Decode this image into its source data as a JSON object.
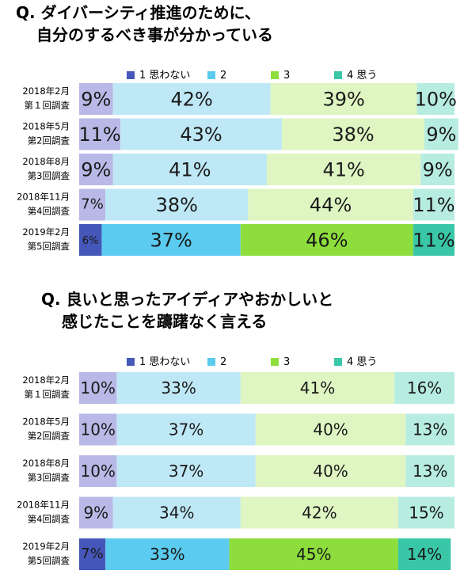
{
  "colors": {
    "light": [
      "#b8b9e6",
      "#bfe8f6",
      "#dff5c2",
      "#b7ece0"
    ],
    "dark": [
      "#4557b8",
      "#5bcbef",
      "#8ddd3c",
      "#39c7a8"
    ]
  },
  "legend_labels": [
    "1 思わない",
    "2",
    "3",
    "4 思う"
  ],
  "charts": [
    {
      "question": [
        "Q. ダイバーシティ推進のために、",
        "自分のするべき事が分かっている"
      ],
      "chart_data": {
        "type": "bar",
        "stacked": "100%",
        "orientation": "horizontal",
        "categories": [
          [
            "2018年2月",
            "第１回調査"
          ],
          [
            "2018年5月",
            "第2回調査"
          ],
          [
            "2018年8月",
            "第3回調査"
          ],
          [
            "2018年11月",
            "第4回調査"
          ],
          [
            "2019年2月",
            "第5回調査"
          ]
        ],
        "series": [
          {
            "name": "1 思わない",
            "values": [
              9,
              11,
              9,
              7,
              6
            ]
          },
          {
            "name": "2",
            "values": [
              42,
              43,
              41,
              38,
              37
            ]
          },
          {
            "name": "3",
            "values": [
              39,
              38,
              41,
              44,
              46
            ]
          },
          {
            "name": "4 思う",
            "values": [
              10,
              9,
              9,
              11,
              11
            ]
          }
        ],
        "highlight_last": true,
        "xlim": [
          0,
          100
        ],
        "legend": "top"
      }
    },
    {
      "question": [
        "Q. 良いと思ったアイディアやおかしいと",
        "感じたことを躊躇なく言える"
      ],
      "chart_data": {
        "type": "bar",
        "stacked": "100%",
        "orientation": "horizontal",
        "categories": [
          [
            "2018年2月",
            "第１回調査"
          ],
          [
            "2018年5月",
            "第2回調査"
          ],
          [
            "2018年8月",
            "第3回調査"
          ],
          [
            "2018年11月",
            "第4回調査"
          ],
          [
            "2019年2月",
            "第5回調査"
          ]
        ],
        "series": [
          {
            "name": "1 思わない",
            "values": [
              10,
              10,
              10,
              9,
              7
            ]
          },
          {
            "name": "2",
            "values": [
              33,
              37,
              37,
              34,
              33
            ]
          },
          {
            "name": "3",
            "values": [
              41,
              40,
              40,
              42,
              45
            ]
          },
          {
            "name": "4 思う",
            "values": [
              16,
              13,
              13,
              15,
              14
            ]
          }
        ],
        "highlight_last": true,
        "xlim": [
          0,
          100
        ],
        "legend": "top"
      }
    }
  ]
}
